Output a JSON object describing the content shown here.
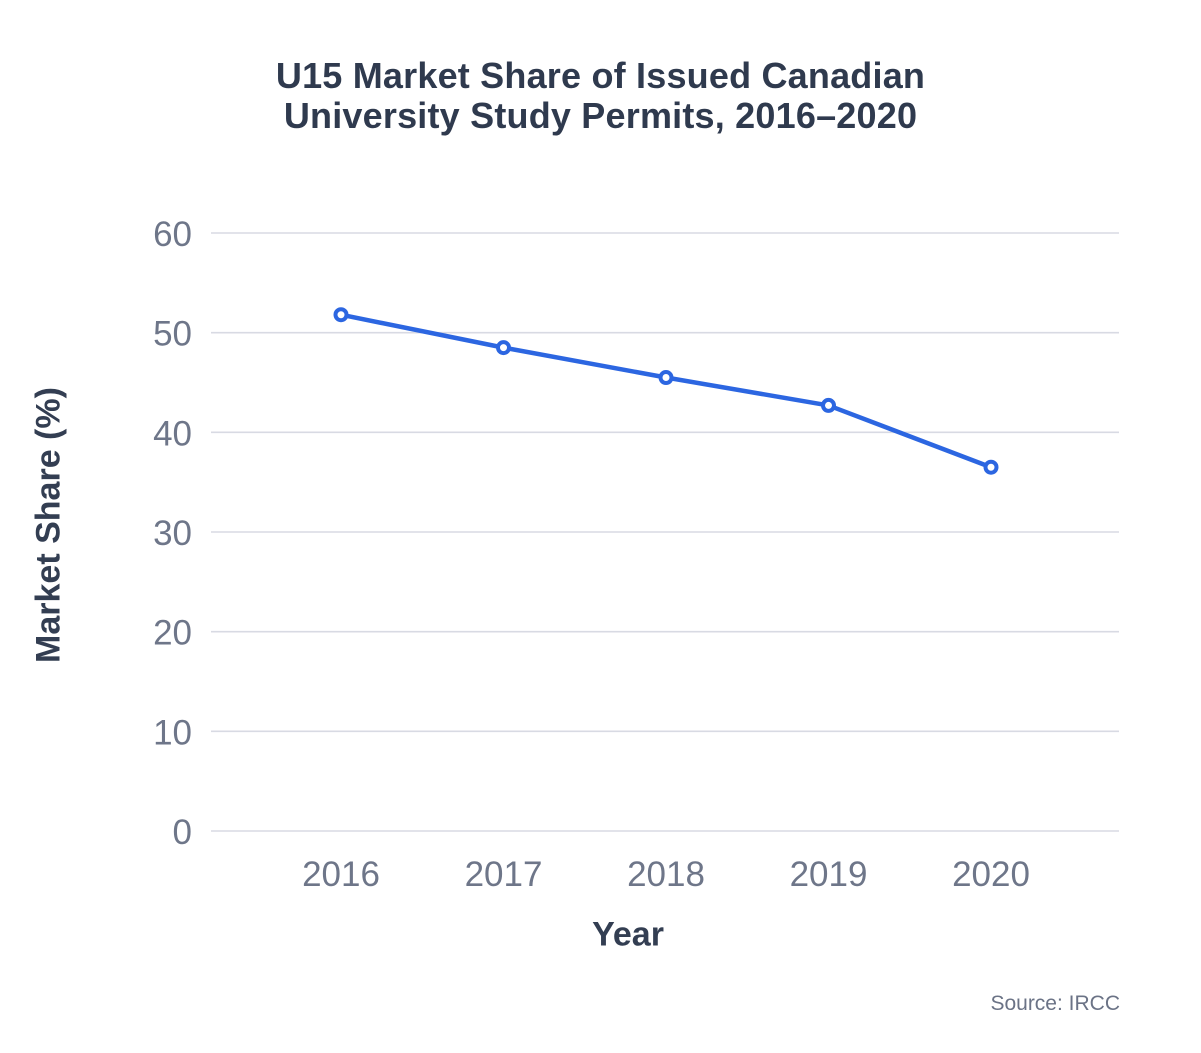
{
  "colors": {
    "title": "#2f3a4e",
    "axis_title": "#333e52",
    "tick": "#6e7689",
    "grid": "#d8dae3",
    "line": "#2c66e1",
    "marker_fill": "#ffffff",
    "source": "#6b7386",
    "background": "#ffffff"
  },
  "chart_data": {
    "type": "line",
    "title": "U15 Market Share of Issued Canadian\nUniversity Study Permits, 2016–2020",
    "xlabel": "Year",
    "ylabel": "Market Share (%)",
    "categories": [
      "2016",
      "2017",
      "2018",
      "2019",
      "2020"
    ],
    "values": [
      51.8,
      48.5,
      45.5,
      42.7,
      36.5
    ],
    "ylim": [
      0,
      60
    ],
    "yticks": [
      0,
      10,
      20,
      30,
      40,
      50,
      60
    ],
    "grid": "horizontal",
    "legend": "none",
    "marker": "open-circle",
    "source": "Source: IRCC"
  }
}
